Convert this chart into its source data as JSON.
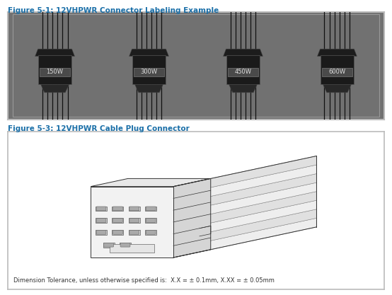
{
  "bg_color": "#ffffff",
  "fig_title1": "Figure 5-1: 12VHPWR Connector Labeling Example",
  "fig_title2": "Figure 5-3: 12VHPWR Cable Plug Connector",
  "connector_labels": [
    "150W",
    "300W",
    "450W",
    "600W"
  ],
  "connector_bg": "#717171",
  "label_bg": "#4a4a4a",
  "label_text_color": "#e0e0e0",
  "box_border_color": "#bbbbbb",
  "inner_border_color": "#999999",
  "title_color": "#1a6fa8",
  "dim_tolerance_text": "Dimension Tolerance, unless otherwise specified is:  X.X = ± 0.1mm, X.XX = ± 0.05mm",
  "font_size_title": 7.5,
  "font_size_label": 6.5,
  "font_size_dim": 6.0,
  "lc": "#333333",
  "lc_light": "#aaaaaa"
}
